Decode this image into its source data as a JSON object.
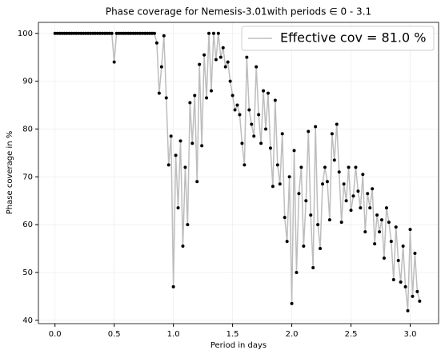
{
  "chart_data": {
    "type": "line",
    "title": "Phase coverage for Nemesis-3.01with periods ∈ 0 - 3.1",
    "xlabel": "Period in days",
    "ylabel": "Phase coverage in %",
    "x": [
      0,
      0.02,
      0.04,
      0.06,
      0.08,
      0.1,
      0.12,
      0.14,
      0.16,
      0.18,
      0.2,
      0.22,
      0.24,
      0.26,
      0.28,
      0.3,
      0.32,
      0.34,
      0.36,
      0.38,
      0.4,
      0.42,
      0.44,
      0.46,
      0.48,
      0.5,
      0.52,
      0.54,
      0.56,
      0.58,
      0.6,
      0.62,
      0.64,
      0.66,
      0.68,
      0.7,
      0.72,
      0.74,
      0.76,
      0.78,
      0.8,
      0.82,
      0.84,
      0.86,
      0.88,
      0.9,
      0.92,
      0.94,
      0.96,
      0.98,
      1.0,
      1.02,
      1.04,
      1.06,
      1.08,
      1.1,
      1.12,
      1.14,
      1.16,
      1.18,
      1.2,
      1.22,
      1.24,
      1.26,
      1.28,
      1.3,
      1.32,
      1.34,
      1.36,
      1.38,
      1.4,
      1.42,
      1.44,
      1.46,
      1.48,
      1.5,
      1.52,
      1.54,
      1.56,
      1.58,
      1.6,
      1.62,
      1.64,
      1.66,
      1.68,
      1.7,
      1.72,
      1.74,
      1.76,
      1.78,
      1.8,
      1.82,
      1.84,
      1.86,
      1.88,
      1.9,
      1.92,
      1.94,
      1.96,
      1.98,
      2.0,
      2.02,
      2.04,
      2.06,
      2.08,
      2.1,
      2.12,
      2.14,
      2.16,
      2.18,
      2.2,
      2.22,
      2.24,
      2.26,
      2.28,
      2.3,
      2.32,
      2.34,
      2.36,
      2.38,
      2.4,
      2.42,
      2.44,
      2.46,
      2.48,
      2.5,
      2.52,
      2.54,
      2.56,
      2.58,
      2.6,
      2.62,
      2.64,
      2.66,
      2.68,
      2.7,
      2.72,
      2.74,
      2.76,
      2.78,
      2.8,
      2.82,
      2.84,
      2.86,
      2.88,
      2.9,
      2.92,
      2.94,
      2.96,
      2.98,
      3.0,
      3.02,
      3.04,
      3.06,
      3.08
    ],
    "series": [
      {
        "name": "Effective cov = 81.0 %",
        "color": "#bdbdbd",
        "marker_color": "#000000",
        "values": [
          100,
          100,
          100,
          100,
          100,
          100,
          100,
          100,
          100,
          100,
          100,
          100,
          100,
          100,
          100,
          100,
          100,
          100,
          100,
          100,
          100,
          100,
          100,
          100,
          100,
          94,
          100,
          100,
          100,
          100,
          100,
          100,
          100,
          100,
          100,
          100,
          100,
          100,
          100,
          100,
          100,
          100,
          100,
          98,
          87.5,
          93,
          99.5,
          86.5,
          72.5,
          78.5,
          47,
          74.5,
          63.5,
          77.5,
          55.5,
          72,
          60,
          85.5,
          77,
          87,
          69,
          93.5,
          76.5,
          95.5,
          86.5,
          100,
          88,
          100,
          94.5,
          100,
          95,
          97,
          93,
          94,
          90,
          87,
          84,
          85,
          83,
          77,
          72.5,
          95,
          84,
          81,
          78.5,
          93,
          83,
          77,
          88,
          80,
          87.5,
          76,
          68,
          86,
          72.5,
          68.5,
          79,
          61.5,
          56.5,
          70,
          43.5,
          75.5,
          50,
          66.5,
          72,
          55.5,
          65,
          79.5,
          62,
          51,
          80.5,
          60,
          55,
          68.5,
          72,
          69,
          61,
          79,
          73.5,
          81,
          71,
          60.5,
          68.5,
          65,
          72,
          63,
          66,
          72,
          67,
          63.5,
          70.5,
          58.5,
          66.5,
          63.5,
          67.5,
          56,
          62,
          58.5,
          61,
          53,
          63.5,
          60.5,
          56.5,
          48.5,
          59.5,
          52.5,
          48,
          55.5,
          47,
          42,
          59,
          45,
          54,
          46,
          44
        ]
      }
    ],
    "xlim": [
      -0.14,
      3.24
    ],
    "xticks": [
      {
        "value": 0,
        "label": "0.0"
      },
      {
        "value": 0.5,
        "label": "0.5"
      },
      {
        "value": 1,
        "label": "1.0"
      },
      {
        "value": 1.5,
        "label": "1.5"
      },
      {
        "value": 2,
        "label": "2.0"
      },
      {
        "value": 2.5,
        "label": "2.5"
      },
      {
        "value": 3,
        "label": "3.0"
      }
    ],
    "ylim": [
      39.3,
      102.3
    ],
    "yticks": [
      40,
      50,
      60,
      70,
      80,
      90,
      100
    ],
    "grid": true,
    "legend": "upper right"
  }
}
